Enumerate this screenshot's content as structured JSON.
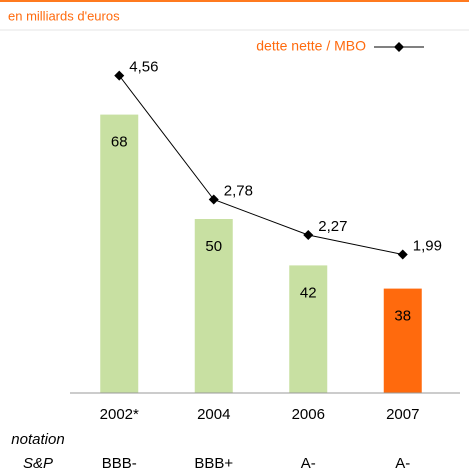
{
  "chart_data": {
    "type": "bar",
    "subtitle": "en milliards d'euros",
    "categories": [
      "2002*",
      "2004",
      "2006",
      "2007"
    ],
    "ylim": [
      20,
      80
    ],
    "y2lim": [
      0,
      5
    ],
    "series": [
      {
        "type": "bar",
        "colors": [
          "#c8e0a2",
          "#c8e0a2",
          "#c8e0a2",
          "#ff6a0d"
        ],
        "values": [
          68,
          50,
          42,
          38
        ]
      },
      {
        "type": "line",
        "name": "dette nette / MBO",
        "axis": "y2",
        "color": "#000000",
        "values": [
          4.56,
          2.78,
          2.27,
          1.99
        ],
        "value_labels": [
          "4,56",
          "2,78",
          "2,27",
          "1,99"
        ]
      }
    ],
    "legend_position": "top-right",
    "rating_label": [
      "notation",
      "S&P"
    ],
    "ratings": [
      "BBB-",
      "BBB+",
      "A-",
      "A-"
    ]
  }
}
